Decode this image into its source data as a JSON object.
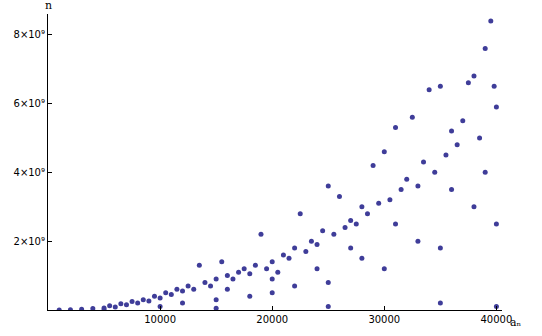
{
  "chart_data": {
    "type": "scatter",
    "x_label": "aₙ",
    "y_label": "n",
    "color": "#3f3d99",
    "marker": "circle",
    "grid": false,
    "x": [
      1000,
      2000,
      3000,
      4000,
      5000,
      5500,
      6000,
      6500,
      7000,
      7500,
      8000,
      8500,
      9000,
      9500,
      10000,
      10500,
      11000,
      11500,
      12000,
      12500,
      13000,
      13500,
      14000,
      14500,
      15000,
      15500,
      16000,
      16500,
      17000,
      17500,
      18000,
      18500,
      19000,
      19500,
      20000,
      20500,
      21000,
      21500,
      22000,
      22500,
      23000,
      23500,
      24000,
      24500,
      25000,
      25500,
      26000,
      26500,
      27000,
      27500,
      28000,
      28500,
      29000,
      29500,
      30000,
      30500,
      31000,
      31500,
      32000,
      32500,
      33000,
      33500,
      34000,
      34500,
      35000,
      35500,
      36000,
      36500,
      37000,
      37500,
      38000,
      38500,
      39000,
      39500,
      39800,
      40000,
      10000,
      15000,
      20000,
      25000,
      30000,
      35000,
      40000,
      12000,
      18000,
      22000,
      28000,
      33000,
      38000,
      36000,
      39000,
      31000,
      27000,
      24000,
      20000,
      16000,
      5000,
      15000,
      25000,
      35000,
      40000
    ],
    "values": [
      2000000.0,
      10000000.0,
      20000000.0,
      40000000.0,
      60000000.0,
      120000000.0,
      90000000.0,
      180000000.0,
      150000000.0,
      250000000.0,
      200000000.0,
      300000000.0,
      260000000.0,
      400000000.0,
      350000000.0,
      500000000.0,
      450000000.0,
      600000000.0,
      550000000.0,
      700000000.0,
      600000000.0,
      1300000000.0,
      800000000.0,
      700000000.0,
      900000000.0,
      1400000000.0,
      1000000000.0,
      900000000.0,
      1100000000.0,
      1200000000.0,
      1050000000.0,
      1300000000.0,
      2200000000.0,
      1200000000.0,
      1400000000.0,
      1100000000.0,
      1600000000.0,
      1500000000.0,
      1800000000.0,
      2800000000.0,
      1700000000.0,
      2000000000.0,
      1900000000.0,
      2300000000.0,
      3600000000.0,
      2200000000.0,
      3300000000.0,
      2400000000.0,
      2600000000.0,
      2500000000.0,
      3000000000.0,
      2800000000.0,
      4200000000.0,
      3100000000.0,
      4600000000.0,
      3200000000.0,
      5300000000.0,
      3500000000.0,
      3800000000.0,
      5600000000.0,
      3600000000.0,
      4300000000.0,
      6400000000.0,
      4000000000.0,
      6500000000.0,
      4500000000.0,
      5200000000.0,
      4800000000.0,
      5500000000.0,
      6600000000.0,
      6800000000.0,
      5000000000.0,
      7600000000.0,
      8400000000.0,
      6500000000.0,
      5900000000.0,
      100000000.0,
      300000000.0,
      500000000.0,
      800000000.0,
      1200000000.0,
      1800000000.0,
      2500000000.0,
      200000000.0,
      400000000.0,
      700000000.0,
      1500000000.0,
      2000000000.0,
      3000000000.0,
      3500000000.0,
      4000000000.0,
      2500000000.0,
      1800000000.0,
      1200000000.0,
      900000000.0,
      600000000.0,
      10000000.0,
      50000000.0,
      100000000.0,
      200000000.0,
      100000000.0
    ],
    "xlim": [
      0,
      40500
    ],
    "xticks": [
      10000,
      20000,
      30000,
      40000
    ],
    "ylim": [
      0,
      8600000000.0
    ],
    "yticks": [
      {
        "value": 2000000000.0,
        "label": "2×10⁹"
      },
      {
        "value": 4000000000.0,
        "label": "4×10⁹"
      },
      {
        "value": 6000000000.0,
        "label": "6×10⁹"
      },
      {
        "value": 8000000000.0,
        "label": "8×10⁹"
      }
    ]
  }
}
